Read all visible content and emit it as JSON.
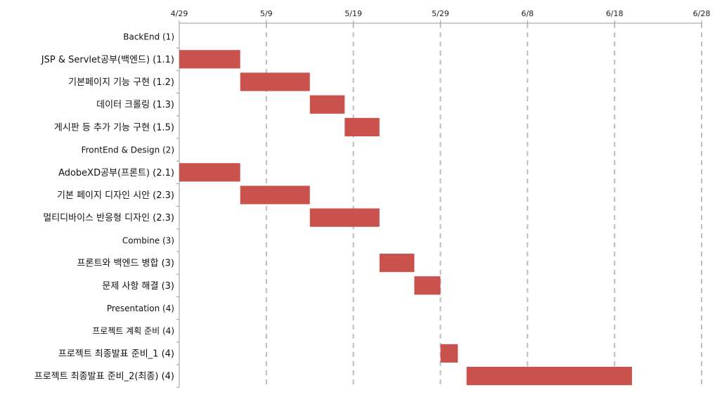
{
  "chart_data": {
    "type": "bar",
    "subtype": "gantt",
    "title": "",
    "xlabel": "",
    "ylabel": "",
    "x_ticks": [
      "4/29",
      "5/9",
      "5/19",
      "5/29",
      "6/8",
      "6/18",
      "6/28"
    ],
    "x_range": [
      "4/29",
      "6/28"
    ],
    "grid": "vertical dashed",
    "bar_color": "#c9524f",
    "tasks": [
      {
        "label": "BackEnd (1)",
        "group": true
      },
      {
        "label": "JSP & Servlet공부(백엔드)  (1.1)",
        "start": "4/29",
        "end": "5/6"
      },
      {
        "label": "기본페이지 기능 구현  (1.2)",
        "start": "5/6",
        "end": "5/14"
      },
      {
        "label": "데이터 크롤링  (1.3)",
        "start": "5/14",
        "end": "5/18"
      },
      {
        "label": "게시판 등 추가 기능 구현  (1.5)",
        "start": "5/18",
        "end": "5/22"
      },
      {
        "label": "FrontEnd & Design (2)",
        "group": true
      },
      {
        "label": "AdobeXD공부(프론트)  (2.1)",
        "start": "4/29",
        "end": "5/6"
      },
      {
        "label": "기본 페이지 디자인 시안  (2.3)",
        "start": "5/6",
        "end": "5/14"
      },
      {
        "label": "멀티디바이스 반응형 디자인  (2.3)",
        "start": "5/14",
        "end": "5/22"
      },
      {
        "label": "Combine (3)",
        "group": true
      },
      {
        "label": "프론트와 백엔드 병합  (3)",
        "start": "5/22",
        "end": "5/26"
      },
      {
        "label": "문제 사항 해결  (3)",
        "start": "5/26",
        "end": "5/29"
      },
      {
        "label": "Presentation (4)",
        "group": true
      },
      {
        "label": "프로젝트 계획 준비  (4)",
        "group": true
      },
      {
        "label": "프로젝트 최종발표 준비_1  (4)",
        "start": "5/29",
        "end": "5/31"
      },
      {
        "label": "프로젝트 최종발표 준비_2(최종)  (4)",
        "start": "6/1",
        "end": "6/20"
      }
    ]
  }
}
